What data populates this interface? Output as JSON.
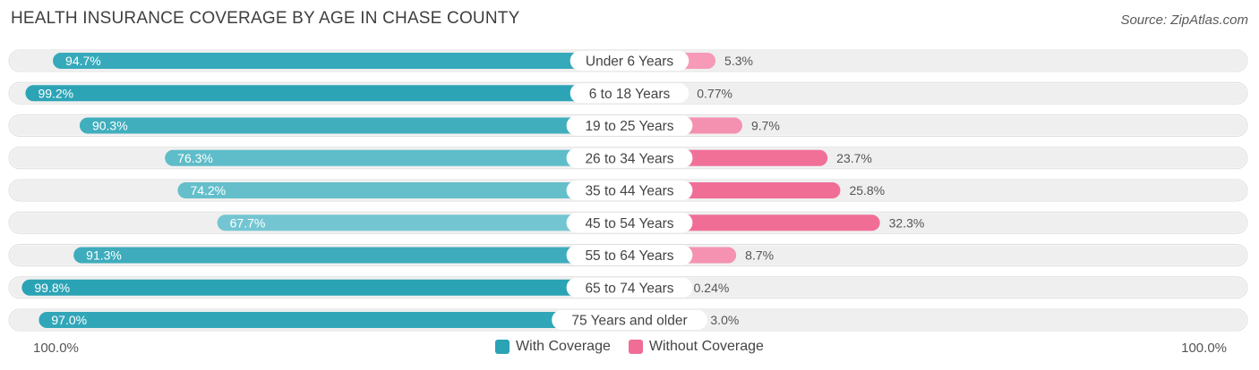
{
  "title": "HEALTH INSURANCE COVERAGE BY AGE IN CHASE COUNTY",
  "source": "Source: ZipAtlas.com",
  "colors": {
    "with_strong": "#2aa3b5",
    "with_light": "#79c9d3",
    "without_strong": "#f06d96",
    "without_light": "#f7a6c0",
    "row_bg": "#efefef"
  },
  "legend": {
    "with_label": "With Coverage",
    "without_label": "Without Coverage"
  },
  "axis": {
    "left_label": "100.0%",
    "right_label": "100.0%"
  },
  "chart_data": {
    "type": "bar",
    "orientation": "horizontal-diverging",
    "title": "HEALTH INSURANCE COVERAGE BY AGE IN CHASE COUNTY",
    "categories": [
      "Under 6 Years",
      "6 to 18 Years",
      "19 to 25 Years",
      "26 to 34 Years",
      "35 to 44 Years",
      "45 to 54 Years",
      "55 to 64 Years",
      "65 to 74 Years",
      "75 Years and older"
    ],
    "series": [
      {
        "name": "With Coverage",
        "values": [
          94.7,
          99.2,
          90.3,
          76.3,
          74.2,
          67.7,
          91.3,
          99.8,
          97.0
        ],
        "labels": [
          "94.7%",
          "99.2%",
          "90.3%",
          "76.3%",
          "74.2%",
          "67.7%",
          "91.3%",
          "99.8%",
          "97.0%"
        ]
      },
      {
        "name": "Without Coverage",
        "values": [
          5.3,
          0.77,
          9.7,
          23.7,
          25.8,
          32.3,
          8.7,
          0.24,
          3.0
        ],
        "labels": [
          "5.3%",
          "0.77%",
          "9.7%",
          "23.7%",
          "25.8%",
          "32.3%",
          "8.7%",
          "0.24%",
          "3.0%"
        ]
      }
    ],
    "xlim": [
      -100,
      100
    ],
    "legend_position": "bottom-center"
  }
}
